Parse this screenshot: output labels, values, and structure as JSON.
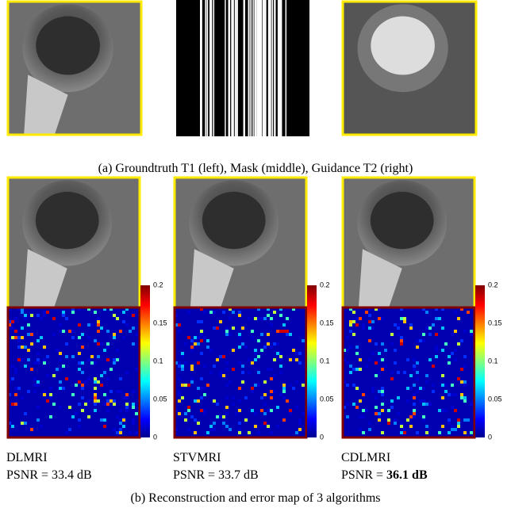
{
  "top_caption": "(a) Groundtruth T1 (left), Mask (middle), Guidance T2 (right)",
  "results": [
    {
      "method": "DLMRI",
      "psnr_prefix": "PSNR = ",
      "psnr": "33.4 dB"
    },
    {
      "method": "STVMRI",
      "psnr_prefix": "PSNR = ",
      "psnr": "33.7 dB"
    },
    {
      "method": "CDLMRI",
      "psnr_prefix": "PSNR = ",
      "psnr": "36.1 dB"
    }
  ],
  "colorbar_ticks": [
    "0.2",
    "0.15",
    "0.1",
    "0.05",
    "0"
  ],
  "bottom_caption": "(b) Reconstruction and error map of 3 algorithms"
}
